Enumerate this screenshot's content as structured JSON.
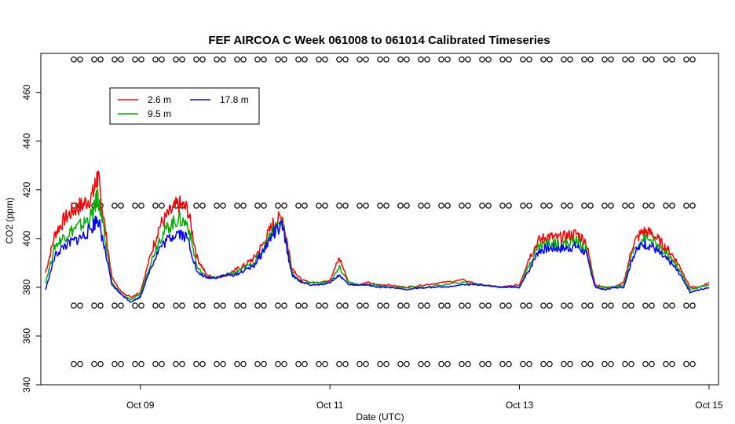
{
  "chart_data": {
    "type": "line",
    "title": "FEF AIRCOA C  Week 061008 to 061014  Calibrated Timeseries",
    "xlabel": "Date (UTC)",
    "ylabel": "CO2 (ppm)",
    "xlim": [
      7.95,
      15.1
    ],
    "ylim": [
      340,
      476
    ],
    "x_ticks": [
      {
        "value": 9,
        "label": "Oct 09"
      },
      {
        "value": 11,
        "label": "Oct 11"
      },
      {
        "value": 13,
        "label": "Oct 13"
      },
      {
        "value": 15,
        "label": "Oct 15"
      }
    ],
    "y_ticks": [
      340,
      360,
      380,
      400,
      420,
      440,
      460
    ],
    "legend_position": "top-left",
    "series": [
      {
        "name": "2.6 m",
        "color": "#ff0000",
        "x": [
          8.0,
          8.1,
          8.2,
          8.3,
          8.4,
          8.5,
          8.55,
          8.6,
          8.7,
          8.8,
          8.9,
          9.0,
          9.1,
          9.2,
          9.3,
          9.4,
          9.5,
          9.6,
          9.7,
          9.8,
          9.9,
          10.0,
          10.1,
          10.2,
          10.3,
          10.4,
          10.5,
          10.6,
          10.7,
          10.8,
          10.9,
          11.0,
          11.1,
          11.2,
          11.3,
          11.4,
          11.5,
          11.6,
          11.8,
          12.0,
          12.2,
          12.4,
          12.6,
          12.8,
          13.0,
          13.1,
          13.2,
          13.3,
          13.4,
          13.5,
          13.6,
          13.7,
          13.8,
          13.9,
          14.0,
          14.1,
          14.2,
          14.3,
          14.4,
          14.5,
          14.6,
          14.7,
          14.8,
          14.9,
          15.0
        ],
        "values": [
          386,
          402,
          408,
          412,
          414,
          418,
          426,
          412,
          384,
          378,
          376,
          378,
          392,
          405,
          410,
          414,
          412,
          392,
          385,
          384,
          385,
          387,
          389,
          392,
          398,
          406,
          409,
          388,
          383,
          382,
          382,
          383,
          392,
          382,
          381,
          382,
          381,
          381,
          380,
          381,
          382,
          383,
          381,
          380,
          381,
          392,
          399,
          401,
          400,
          401,
          402,
          399,
          381,
          380,
          380,
          382,
          398,
          403,
          402,
          398,
          394,
          388,
          380,
          380,
          382
        ]
      },
      {
        "name": "9.5 m",
        "color": "#00b000",
        "x": [
          8.0,
          8.1,
          8.2,
          8.3,
          8.4,
          8.5,
          8.55,
          8.6,
          8.7,
          8.8,
          8.9,
          9.0,
          9.1,
          9.2,
          9.3,
          9.4,
          9.5,
          9.6,
          9.7,
          9.8,
          9.9,
          10.0,
          10.1,
          10.2,
          10.3,
          10.4,
          10.5,
          10.6,
          10.7,
          10.8,
          10.9,
          11.0,
          11.1,
          11.2,
          11.3,
          11.4,
          11.5,
          11.6,
          11.8,
          12.0,
          12.2,
          12.4,
          12.6,
          12.8,
          13.0,
          13.1,
          13.2,
          13.3,
          13.4,
          13.5,
          13.6,
          13.7,
          13.8,
          13.9,
          14.0,
          14.1,
          14.2,
          14.3,
          14.4,
          14.5,
          14.6,
          14.7,
          14.8,
          14.9,
          15.0
        ],
        "values": [
          382,
          397,
          401,
          404,
          406,
          410,
          418,
          406,
          382,
          377,
          375,
          377,
          389,
          400,
          405,
          408,
          406,
          388,
          384,
          384,
          385,
          386,
          388,
          390,
          396,
          404,
          407,
          386,
          382,
          382,
          382,
          382,
          388,
          382,
          381,
          381,
          381,
          380,
          380,
          380,
          381,
          382,
          381,
          380,
          380,
          389,
          397,
          398,
          398,
          398,
          399,
          396,
          380,
          380,
          380,
          381,
          395,
          400,
          399,
          395,
          392,
          386,
          379,
          380,
          381
        ]
      },
      {
        "name": "17.8 m",
        "color": "#0000ff",
        "x": [
          8.0,
          8.1,
          8.2,
          8.3,
          8.4,
          8.5,
          8.55,
          8.6,
          8.7,
          8.8,
          8.9,
          9.0,
          9.1,
          9.2,
          9.3,
          9.4,
          9.5,
          9.6,
          9.7,
          9.8,
          9.9,
          10.0,
          10.1,
          10.2,
          10.3,
          10.4,
          10.5,
          10.6,
          10.7,
          10.8,
          10.9,
          11.0,
          11.1,
          11.2,
          11.3,
          11.4,
          11.5,
          11.6,
          11.8,
          12.0,
          12.2,
          12.4,
          12.6,
          12.8,
          13.0,
          13.1,
          13.2,
          13.3,
          13.4,
          13.5,
          13.6,
          13.7,
          13.8,
          13.9,
          14.0,
          14.1,
          14.2,
          14.3,
          14.4,
          14.5,
          14.6,
          14.7,
          14.8,
          14.9,
          15.0
        ],
        "values": [
          379,
          393,
          397,
          399,
          401,
          405,
          409,
          400,
          381,
          377,
          374,
          376,
          387,
          396,
          400,
          403,
          400,
          386,
          384,
          384,
          385,
          385,
          387,
          389,
          395,
          402,
          405,
          385,
          382,
          381,
          381,
          382,
          385,
          381,
          381,
          381,
          380,
          380,
          379,
          380,
          380,
          381,
          381,
          380,
          380,
          387,
          395,
          396,
          396,
          396,
          397,
          394,
          380,
          379,
          380,
          380,
          393,
          398,
          397,
          393,
          390,
          385,
          378,
          379,
          380
        ]
      }
    ],
    "calibration_rows": [
      {
        "y": 473.5,
        "symbol": "open-circle"
      },
      {
        "y": 413.5,
        "symbol": "open-circle"
      },
      {
        "y": 372.5,
        "symbol": "open-circle"
      },
      {
        "y": 348.5,
        "symbol": "open-circle"
      }
    ]
  }
}
